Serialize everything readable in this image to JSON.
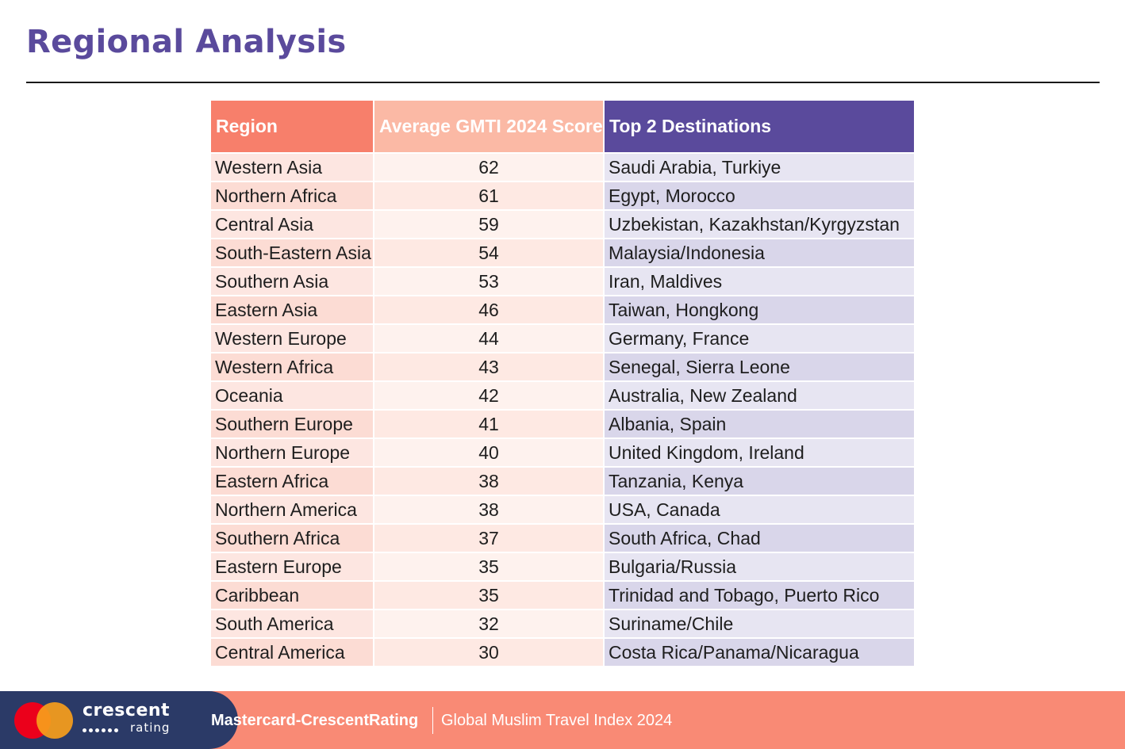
{
  "page": {
    "title": "Regional Analysis"
  },
  "table": {
    "headers": [
      "Region",
      "Average GMTI 2024 Score",
      "Top 2 Destinations"
    ],
    "rows": [
      {
        "region": "Western Asia",
        "score": "62",
        "destinations": "Saudi Arabia, Turkiye"
      },
      {
        "region": "Northern Africa",
        "score": "61",
        "destinations": "Egypt, Morocco"
      },
      {
        "region": "Central Asia",
        "score": "59",
        "destinations": "Uzbekistan, Kazakhstan/Kyrgyzstan"
      },
      {
        "region": "South-Eastern Asia",
        "score": "54",
        "destinations": "Malaysia/Indonesia"
      },
      {
        "region": "Southern Asia",
        "score": "53",
        "destinations": "Iran, Maldives"
      },
      {
        "region": "Eastern Asia",
        "score": "46",
        "destinations": "Taiwan, Hongkong"
      },
      {
        "region": "Western Europe",
        "score": "44",
        "destinations": "Germany, France"
      },
      {
        "region": "Western Africa",
        "score": "43",
        "destinations": "Senegal, Sierra Leone"
      },
      {
        "region": "Oceania",
        "score": "42",
        "destinations": "Australia, New Zealand"
      },
      {
        "region": "Southern Europe",
        "score": "41",
        "destinations": "Albania, Spain"
      },
      {
        "region": "Northern Europe",
        "score": "40",
        "destinations": "United Kingdom, Ireland"
      },
      {
        "region": "Eastern Africa",
        "score": "38",
        "destinations": "Tanzania, Kenya"
      },
      {
        "region": "Northern America",
        "score": "38",
        "destinations": "USA, Canada"
      },
      {
        "region": "Southern Africa",
        "score": "37",
        "destinations": "South Africa, Chad"
      },
      {
        "region": "Eastern Europe",
        "score": "35",
        "destinations": "Bulgaria/Russia"
      },
      {
        "region": "Caribbean",
        "score": "35",
        "destinations": "Trinidad and Tobago, Puerto Rico"
      },
      {
        "region": "South America",
        "score": "32",
        "destinations": "Suriname/Chile"
      },
      {
        "region": "Central America",
        "score": "30",
        "destinations": "Costa Rica/Panama/Nicaragua"
      }
    ]
  },
  "footer": {
    "logo_word": "crescent",
    "logo_sub": "rating",
    "brand": "Mastercard-CrescentRating",
    "report": "Global Muslim Travel Index 2024"
  },
  "colors": {
    "title": "#5a4a9c",
    "header_region": "#f77f6b",
    "header_score": "#fbb9a5",
    "header_destinations": "#5a4a9c",
    "footer_bar": "#f98a75",
    "footer_logo_block": "#2b3a67"
  },
  "icons": {
    "mastercard_logo": "mastercard-logo-icon",
    "crescentrating_logo": "crescentrating-logo-icon"
  }
}
